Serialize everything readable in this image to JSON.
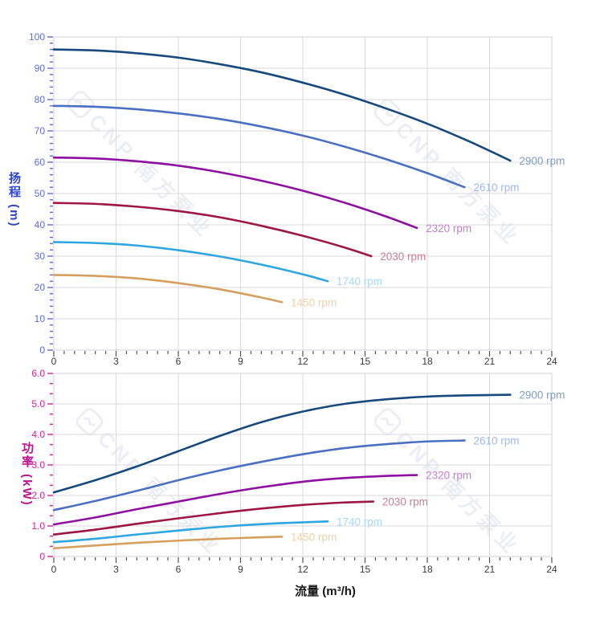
{
  "watermark": {
    "text": "CNP 南方泵业"
  },
  "x_axis_title": "流量 (m³/h)",
  "chart_data": [
    {
      "type": "line",
      "title": "",
      "xlabel": "流量 (m³/h)",
      "ylabel": "扬程 (m)",
      "xlim": [
        0,
        24
      ],
      "ylim": [
        0,
        100
      ],
      "x_major": 3,
      "x_minor": 0.5,
      "y_major": 10,
      "y_minor": 2,
      "grid": "major-only",
      "x_ticks": [
        "0",
        "3",
        "6",
        "9",
        "12",
        "15",
        "18",
        "21",
        "24"
      ],
      "y_ticks": [
        "0",
        "10",
        "20",
        "30",
        "40",
        "50",
        "60",
        "70",
        "80",
        "90",
        "100"
      ],
      "axis_text_color": "#5b6cdd",
      "tick_color": "#5b6cdd",
      "x_tick_text_color": "#3a3a3a",
      "legend_position": "curve-end-labels",
      "series": [
        {
          "name": "2900 rpm",
          "color": "#174a7c",
          "label_color": "#7d9fc6",
          "points": [
            [
              0,
              96
            ],
            [
              2,
              95.7
            ],
            [
              4,
              94.8
            ],
            [
              6,
              93.4
            ],
            [
              8,
              91.3
            ],
            [
              10,
              88.7
            ],
            [
              12,
              85.4
            ],
            [
              14,
              81.6
            ],
            [
              16,
              77.2
            ],
            [
              18,
              72.3
            ],
            [
              20,
              66.7
            ],
            [
              22,
              60.5
            ]
          ]
        },
        {
          "name": "2610 rpm",
          "color": "#4a70c2",
          "label_color": "#9fb9ea",
          "points": [
            [
              0,
              78
            ],
            [
              2,
              77.7
            ],
            [
              4,
              76.9
            ],
            [
              6,
              75.6
            ],
            [
              8,
              73.8
            ],
            [
              10,
              71.4
            ],
            [
              12,
              68.5
            ],
            [
              14,
              65.0
            ],
            [
              16,
              61.0
            ],
            [
              18,
              56.5
            ],
            [
              19.8,
              52.0
            ]
          ]
        },
        {
          "name": "2320 rpm",
          "color": "#8e10a0",
          "label_color": "#c87bd3",
          "points": [
            [
              0,
              61.5
            ],
            [
              2,
              61.2
            ],
            [
              4,
              60.3
            ],
            [
              6,
              58.9
            ],
            [
              8,
              56.8
            ],
            [
              10,
              54.1
            ],
            [
              12,
              50.9
            ],
            [
              14,
              47.1
            ],
            [
              16,
              42.7
            ],
            [
              17.5,
              39.0
            ]
          ]
        },
        {
          "name": "2030 rpm",
          "color": "#9e1742",
          "label_color": "#c57f95",
          "points": [
            [
              0,
              47
            ],
            [
              2,
              46.7
            ],
            [
              4,
              45.8
            ],
            [
              6,
              44.4
            ],
            [
              8,
              42.4
            ],
            [
              10,
              39.7
            ],
            [
              12,
              36.5
            ],
            [
              14,
              32.8
            ],
            [
              15.3,
              30.0
            ]
          ]
        },
        {
          "name": "1740 rpm",
          "color": "#2ea6df",
          "label_color": "#a5d8f3",
          "points": [
            [
              0,
              34.5
            ],
            [
              2,
              34.2
            ],
            [
              4,
              33.4
            ],
            [
              6,
              31.9
            ],
            [
              8,
              29.9
            ],
            [
              10,
              27.3
            ],
            [
              12,
              24.2
            ],
            [
              13.2,
              22.0
            ]
          ]
        },
        {
          "name": "1450 rpm",
          "color": "#d5a05d",
          "label_color": "#ecd2a5",
          "points": [
            [
              0,
              24
            ],
            [
              2,
              23.7
            ],
            [
              4,
              22.9
            ],
            [
              6,
              21.4
            ],
            [
              8,
              19.4
            ],
            [
              10,
              16.8
            ],
            [
              11,
              15.3
            ]
          ]
        }
      ]
    },
    {
      "type": "line",
      "title": "",
      "xlabel": "流量 (m³/h)",
      "ylabel": "功率 (kW)",
      "xlim": [
        0,
        24
      ],
      "ylim": [
        0,
        6
      ],
      "x_major": 3,
      "x_minor": 0.5,
      "y_major": 1,
      "y_minor": 0.33333,
      "grid": "major-only",
      "x_ticks": [
        "0",
        "3",
        "6",
        "9",
        "12",
        "15",
        "18",
        "21",
        "24"
      ],
      "y_ticks": [
        "0",
        "1.0",
        "2.0",
        "3.0",
        "4.0",
        "5.0",
        "6.0"
      ],
      "axis_text_color": "#d6219c",
      "tick_color": "#d6219c",
      "x_tick_text_color": "#3a3a3a",
      "legend_position": "curve-end-labels",
      "series": [
        {
          "name": "2900 rpm",
          "color": "#174a7c",
          "label_color": "#7d9fc6",
          "points": [
            [
              0,
              2.1
            ],
            [
              2,
              2.5
            ],
            [
              4,
              2.95
            ],
            [
              6,
              3.45
            ],
            [
              8,
              3.95
            ],
            [
              10,
              4.4
            ],
            [
              12,
              4.75
            ],
            [
              14,
              5.0
            ],
            [
              16,
              5.15
            ],
            [
              18,
              5.24
            ],
            [
              20,
              5.28
            ],
            [
              22,
              5.3
            ]
          ]
        },
        {
          "name": "2610 rpm",
          "color": "#4a70c2",
          "label_color": "#9fb9ea",
          "points": [
            [
              0,
              1.52
            ],
            [
              2,
              1.82
            ],
            [
              4,
              2.15
            ],
            [
              6,
              2.5
            ],
            [
              8,
              2.82
            ],
            [
              10,
              3.1
            ],
            [
              12,
              3.35
            ],
            [
              14,
              3.55
            ],
            [
              16,
              3.68
            ],
            [
              18,
              3.77
            ],
            [
              19.8,
              3.8
            ]
          ]
        },
        {
          "name": "2320 rpm",
          "color": "#8e10a0",
          "label_color": "#c87bd3",
          "points": [
            [
              0,
              1.05
            ],
            [
              2,
              1.28
            ],
            [
              4,
              1.55
            ],
            [
              6,
              1.8
            ],
            [
              8,
              2.05
            ],
            [
              10,
              2.27
            ],
            [
              12,
              2.45
            ],
            [
              14,
              2.57
            ],
            [
              16,
              2.64
            ],
            [
              17.5,
              2.67
            ]
          ]
        },
        {
          "name": "2030 rpm",
          "color": "#9e1742",
          "label_color": "#c57f95",
          "points": [
            [
              0,
              0.72
            ],
            [
              2,
              0.88
            ],
            [
              4,
              1.07
            ],
            [
              6,
              1.25
            ],
            [
              8,
              1.42
            ],
            [
              10,
              1.57
            ],
            [
              12,
              1.69
            ],
            [
              14,
              1.77
            ],
            [
              15.4,
              1.8
            ]
          ]
        },
        {
          "name": "1740 rpm",
          "color": "#2ea6df",
          "label_color": "#a5d8f3",
          "points": [
            [
              0,
              0.47
            ],
            [
              2,
              0.58
            ],
            [
              4,
              0.72
            ],
            [
              6,
              0.85
            ],
            [
              8,
              0.97
            ],
            [
              10,
              1.06
            ],
            [
              12,
              1.12
            ],
            [
              13.2,
              1.15
            ]
          ]
        },
        {
          "name": "1450 rpm",
          "color": "#d5a05d",
          "label_color": "#ecd2a5",
          "points": [
            [
              0,
              0.27
            ],
            [
              2,
              0.36
            ],
            [
              4,
              0.45
            ],
            [
              6,
              0.52
            ],
            [
              8,
              0.58
            ],
            [
              10,
              0.63
            ],
            [
              11,
              0.65
            ]
          ]
        }
      ]
    }
  ]
}
